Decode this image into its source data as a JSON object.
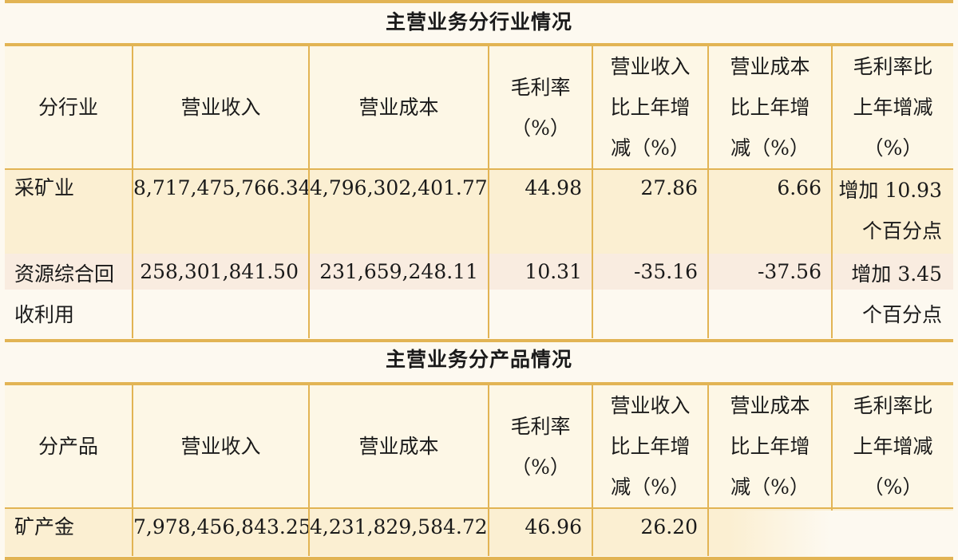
{
  "industry_section": {
    "title": "主营业务分行业情况",
    "headers": {
      "category": "分行业",
      "revenue": "营业收入",
      "cost": "营业成本",
      "margin_l1": "毛利率",
      "margin_l2": "（%）",
      "rev_chg_l1": "营业收入",
      "rev_chg_l2": "比上年增",
      "rev_chg_l3": "减（%）",
      "cost_chg_l1": "营业成本",
      "cost_chg_l2": "比上年增",
      "cost_chg_l3": "减（%）",
      "margin_chg_l1": "毛利率比",
      "margin_chg_l2": "上年增减",
      "margin_chg_l3": "（%）"
    },
    "rows": [
      {
        "name_l1": "采矿业",
        "name_l2": "",
        "revenue": "8,717,475,766.34",
        "cost": "4,796,302,401.77",
        "margin": "44.98",
        "rev_chg": "27.86",
        "cost_chg": "6.66",
        "margin_chg_l1": "增加 10.93",
        "margin_chg_l2": "个百分点"
      },
      {
        "name_l1": "资源综合回",
        "name_l2": "收利用",
        "revenue": "258,301,841.50",
        "cost": "231,659,248.11",
        "margin": "10.31",
        "rev_chg": "-35.16",
        "cost_chg": "-37.56",
        "margin_chg_l1": "增加 3.45",
        "margin_chg_l2": "个百分点"
      }
    ]
  },
  "product_section": {
    "title": "主营业务分产品情况",
    "headers": {
      "category": "分产品",
      "revenue": "营业收入",
      "cost": "营业成本",
      "margin_l1": "毛利率",
      "margin_l2": "（%）",
      "rev_chg_l1": "营业收入",
      "rev_chg_l2": "比上年增",
      "rev_chg_l3": "减（%）",
      "cost_chg_l1": "营业成本",
      "cost_chg_l2": "比上年增",
      "cost_chg_l3": "减（%）",
      "margin_chg_l1": "毛利率比",
      "margin_chg_l2": "上年增减",
      "margin_chg_l3": "（%）"
    },
    "rows": [
      {
        "name": "矿产金",
        "revenue": "7,978,456,843.25",
        "cost": "4,231,829,584.72",
        "margin": "46.96",
        "rev_chg": "26.20"
      }
    ]
  },
  "colors": {
    "rule": "#e2b454",
    "page_bg": "#fdf9f0",
    "row_bg": "#fbefd2"
  }
}
